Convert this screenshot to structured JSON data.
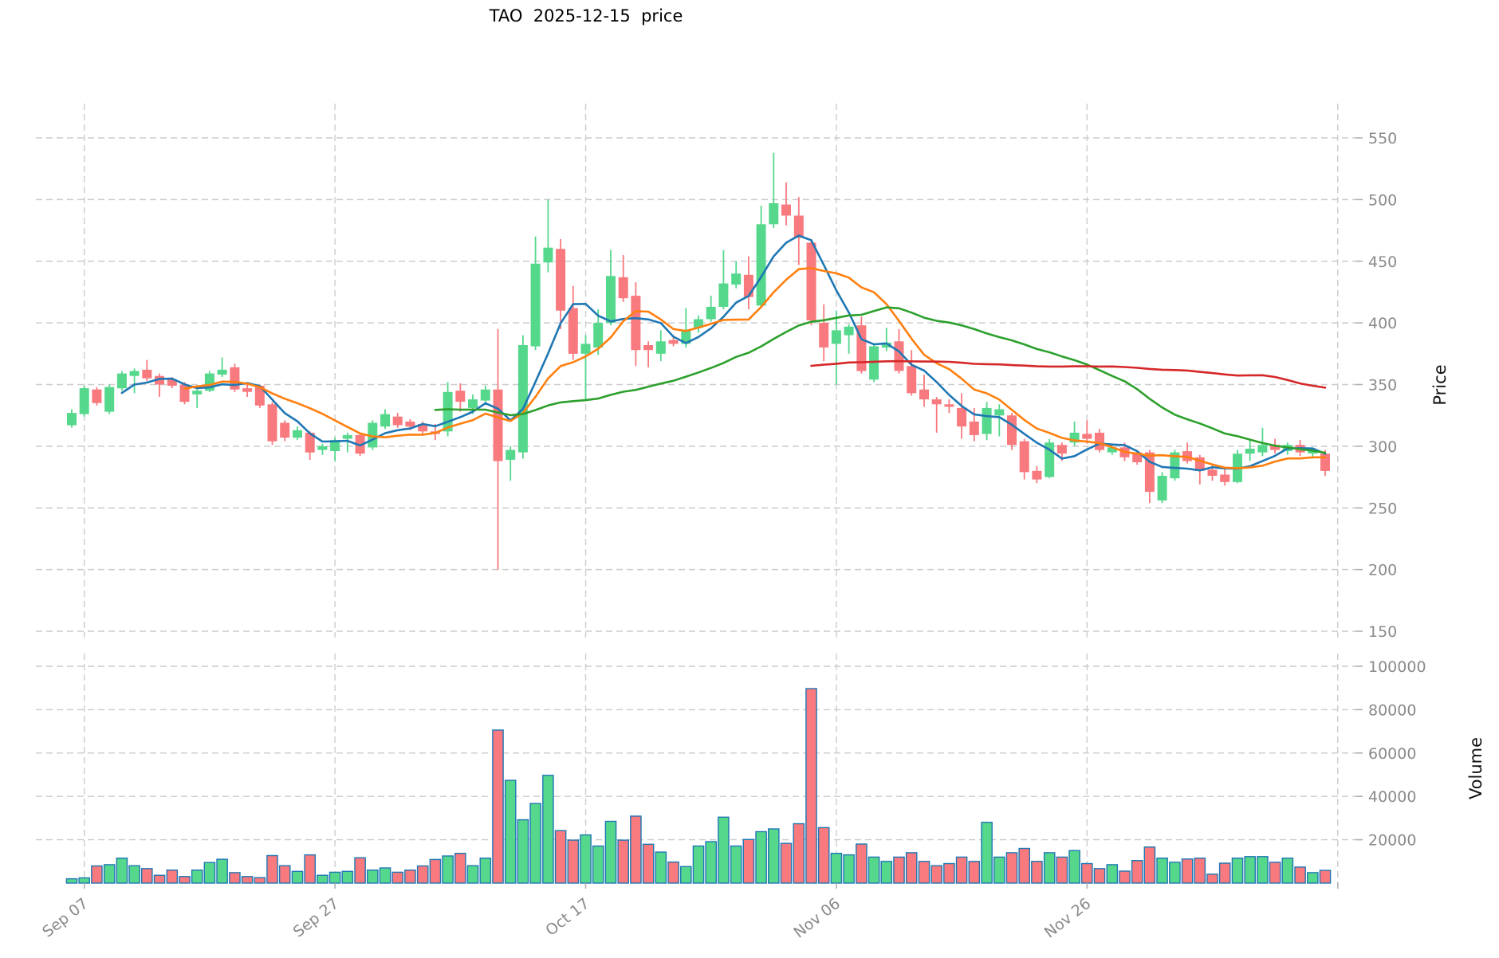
{
  "title": "TAO  2025-12-15  price",
  "chart_data": {
    "type": "candlestick_with_volume",
    "title": "TAO  2025-12-15  price",
    "ylabel_price": "Price",
    "ylabel_volume": "Volume",
    "grid": true,
    "price_ticks": [
      150,
      200,
      250,
      300,
      350,
      400,
      450,
      500,
      550
    ],
    "volume_ticks": [
      20000,
      40000,
      60000,
      80000,
      100000
    ],
    "x_ticks": [
      {
        "label": "Sep 07",
        "index": 1
      },
      {
        "label": "Sep 27",
        "index": 21
      },
      {
        "label": "Oct 17",
        "index": 41
      },
      {
        "label": "Nov 06",
        "index": 61
      },
      {
        "label": "Nov 26",
        "index": 81
      },
      {
        "label": "",
        "index": 101
      }
    ],
    "colors": {
      "up": "#55d78c",
      "down": "#f8797e",
      "volume_edge": "#1f77b4",
      "ma5": "#1f77b4",
      "ma10": "#ff7f0e",
      "ma30": "#2ca02c",
      "ma60": "#d62728",
      "grid": "#cccccc",
      "tick_text": "#8a8a8a"
    },
    "moving_averages": [
      {
        "label": "MA5",
        "window": 5,
        "color": "#1f77b4"
      },
      {
        "label": "MA10",
        "window": 10,
        "color": "#ff7f0e"
      },
      {
        "label": "MA30",
        "window": 30,
        "color": "#2ca02c"
      },
      {
        "label": "MA60",
        "window": 60,
        "color": "#d62728"
      }
    ],
    "candle_fields": [
      "date",
      "open",
      "high",
      "low",
      "close",
      "volume"
    ],
    "candles": [
      [
        "Sep 06",
        317,
        330,
        315,
        327,
        2000
      ],
      [
        "Sep 07",
        326,
        349,
        324,
        347,
        2400
      ],
      [
        "Sep 08",
        346,
        348,
        333,
        335,
        7900
      ],
      [
        "Sep 09",
        328,
        350,
        326,
        348,
        8500
      ],
      [
        "Sep 10",
        347,
        361,
        345,
        359,
        11500
      ],
      [
        "Sep 11",
        357,
        363,
        343,
        361,
        8000
      ],
      [
        "Sep 12",
        362,
        370,
        353,
        355,
        6700
      ],
      [
        "Sep 13",
        357,
        359,
        340,
        350,
        3600
      ],
      [
        "Sep 14",
        354,
        356,
        347,
        349,
        6000
      ],
      [
        "Sep 15",
        350,
        352,
        334,
        336,
        3000
      ],
      [
        "Sep 16",
        342,
        346,
        331,
        345,
        6000
      ],
      [
        "Sep 17",
        345,
        361,
        344,
        359,
        9500
      ],
      [
        "Sep 18",
        358,
        372,
        356,
        362,
        11000
      ],
      [
        "Sep 19",
        364,
        367,
        344,
        346,
        4800
      ],
      [
        "Sep 20",
        347,
        351,
        340,
        344,
        3000
      ],
      [
        "Sep 21",
        349,
        350,
        331,
        333,
        2500
      ],
      [
        "Sep 22",
        334,
        336,
        301,
        304,
        12700
      ],
      [
        "Sep 23",
        319,
        321,
        304,
        307,
        8000
      ],
      [
        "Sep 24",
        307,
        316,
        305,
        313,
        5400
      ],
      [
        "Sep 25",
        311,
        312,
        289,
        295,
        13000
      ],
      [
        "Sep 26",
        297,
        302,
        293,
        300,
        3600
      ],
      [
        "Sep 27",
        296,
        307,
        288,
        305,
        5000
      ],
      [
        "Sep 28",
        306,
        311,
        295,
        309,
        5400
      ],
      [
        "Sep 29",
        309,
        311,
        292,
        294,
        11700
      ],
      [
        "Sep 30",
        299,
        321,
        297,
        319,
        6000
      ],
      [
        "Oct 01",
        316,
        330,
        314,
        326,
        7000
      ],
      [
        "Oct 02",
        324,
        327,
        315,
        317,
        5000
      ],
      [
        "Oct 03",
        320,
        322,
        313,
        316,
        6000
      ],
      [
        "Oct 04",
        318,
        320,
        310,
        312,
        7900
      ],
      [
        "Oct 05",
        312,
        318,
        305,
        310,
        10900
      ],
      [
        "Oct 06",
        312,
        352,
        308,
        344,
        12500
      ],
      [
        "Oct 07",
        345,
        351,
        328,
        336,
        13700
      ],
      [
        "Oct 08",
        331,
        342,
        326,
        338,
        8000
      ],
      [
        "Oct 09",
        337,
        349,
        334,
        346,
        11500
      ],
      [
        "Oct 10",
        346,
        395,
        200,
        288,
        70600
      ],
      [
        "Oct 11",
        289,
        300,
        272,
        297,
        47400
      ],
      [
        "Oct 12",
        295,
        390,
        290,
        382,
        29200
      ],
      [
        "Oct 13",
        381,
        470,
        378,
        448,
        36700
      ],
      [
        "Oct 14",
        449,
        500,
        441,
        461,
        49700
      ],
      [
        "Oct 15",
        460,
        468,
        395,
        410,
        24200
      ],
      [
        "Oct 16",
        412,
        430,
        370,
        375,
        19800
      ],
      [
        "Oct 17",
        375,
        390,
        338,
        383,
        22200
      ],
      [
        "Oct 18",
        380,
        411,
        374,
        400,
        17100
      ],
      [
        "Oct 19",
        400,
        459,
        398,
        438,
        28500
      ],
      [
        "Oct 20",
        437,
        455,
        417,
        420,
        19800
      ],
      [
        "Oct 21",
        422,
        433,
        365,
        378,
        30900
      ],
      [
        "Oct 22",
        382,
        385,
        364,
        378,
        17900
      ],
      [
        "Oct 23",
        375,
        394,
        369,
        385,
        14300
      ],
      [
        "Oct 24",
        386,
        390,
        381,
        383,
        9700
      ],
      [
        "Oct 25",
        383,
        412,
        380,
        394,
        7600
      ],
      [
        "Oct 26",
        396,
        406,
        392,
        403,
        17100
      ],
      [
        "Oct 27",
        403,
        422,
        401,
        413,
        19100
      ],
      [
        "Oct 28",
        413,
        459,
        411,
        432,
        30400
      ],
      [
        "Oct 29",
        431,
        450,
        428,
        440,
        17100
      ],
      [
        "Oct 30",
        439,
        454,
        411,
        421,
        20100
      ],
      [
        "Oct 31",
        414,
        495,
        412,
        480,
        23700
      ],
      [
        "Nov 01",
        480,
        538,
        477,
        497,
        25000
      ],
      [
        "Nov 02",
        496,
        514,
        479,
        487,
        18300
      ],
      [
        "Nov 03",
        487,
        502,
        447,
        469,
        27400
      ],
      [
        "Nov 04",
        465,
        468,
        398,
        402,
        89700
      ],
      [
        "Nov 05",
        400,
        415,
        369,
        380,
        25600
      ],
      [
        "Nov 06",
        383,
        410,
        350,
        394,
        13700
      ],
      [
        "Nov 07",
        390,
        399,
        375,
        397,
        13000
      ],
      [
        "Nov 08",
        398,
        405,
        359,
        361,
        18000
      ],
      [
        "Nov 09",
        354,
        383,
        352,
        381,
        12000
      ],
      [
        "Nov 10",
        380,
        396,
        377,
        384,
        10000
      ],
      [
        "Nov 11",
        385,
        395,
        359,
        361,
        12000
      ],
      [
        "Nov 12",
        365,
        378,
        341,
        343,
        14000
      ],
      [
        "Nov 13",
        346,
        358,
        332,
        338,
        10000
      ],
      [
        "Nov 14",
        338,
        340,
        311,
        334,
        8000
      ],
      [
        "Nov 15",
        334,
        338,
        327,
        332,
        9000
      ],
      [
        "Nov 16",
        331,
        343,
        306,
        316,
        12000
      ],
      [
        "Nov 17",
        320,
        331,
        304,
        309,
        10000
      ],
      [
        "Nov 18",
        310,
        336,
        305,
        331,
        28000
      ],
      [
        "Nov 19",
        325,
        334,
        308,
        330,
        12000
      ],
      [
        "Nov 20",
        325,
        327,
        297,
        301,
        14000
      ],
      [
        "Nov 21",
        304,
        306,
        273,
        279,
        16000
      ],
      [
        "Nov 22",
        280,
        284,
        270,
        273,
        10000
      ],
      [
        "Nov 23",
        275,
        306,
        274,
        303,
        14000
      ],
      [
        "Nov 24",
        301,
        303,
        288,
        294,
        12000
      ],
      [
        "Nov 25",
        303,
        320,
        300,
        311,
        15000
      ],
      [
        "Nov 26",
        310,
        321,
        302,
        306,
        9000
      ],
      [
        "Nov 27",
        311,
        314,
        295,
        297,
        6700
      ],
      [
        "Nov 28",
        295,
        301,
        293,
        299,
        8500
      ],
      [
        "Nov 29",
        299,
        303,
        288,
        291,
        5500
      ],
      [
        "Nov 30",
        295,
        297,
        285,
        287,
        10400
      ],
      [
        "Dec 01",
        295,
        297,
        254,
        263,
        16600
      ],
      [
        "Dec 02",
        256,
        279,
        254,
        276,
        11500
      ],
      [
        "Dec 03",
        274,
        297,
        272,
        295,
        9600
      ],
      [
        "Dec 04",
        296,
        303,
        286,
        288,
        11100
      ],
      [
        "Dec 05",
        291,
        293,
        269,
        280,
        11500
      ],
      [
        "Dec 06",
        281,
        285,
        272,
        276,
        4100
      ],
      [
        "Dec 07",
        277,
        283,
        268,
        271,
        9200
      ],
      [
        "Dec 08",
        271,
        297,
        270,
        294,
        11500
      ],
      [
        "Dec 09",
        294,
        305,
        288,
        298,
        12200
      ],
      [
        "Dec 10",
        295,
        315,
        292,
        301,
        12200
      ],
      [
        "Dec 11",
        301,
        306,
        294,
        297,
        9600
      ],
      [
        "Dec 12",
        296,
        303,
        293,
        301,
        11500
      ],
      [
        "Dec 13",
        301,
        305,
        292,
        295,
        7400
      ],
      [
        "Dec 14",
        294,
        299,
        290,
        297,
        4800
      ],
      [
        "Dec 15",
        294,
        297,
        276,
        280,
        5900
      ]
    ]
  }
}
